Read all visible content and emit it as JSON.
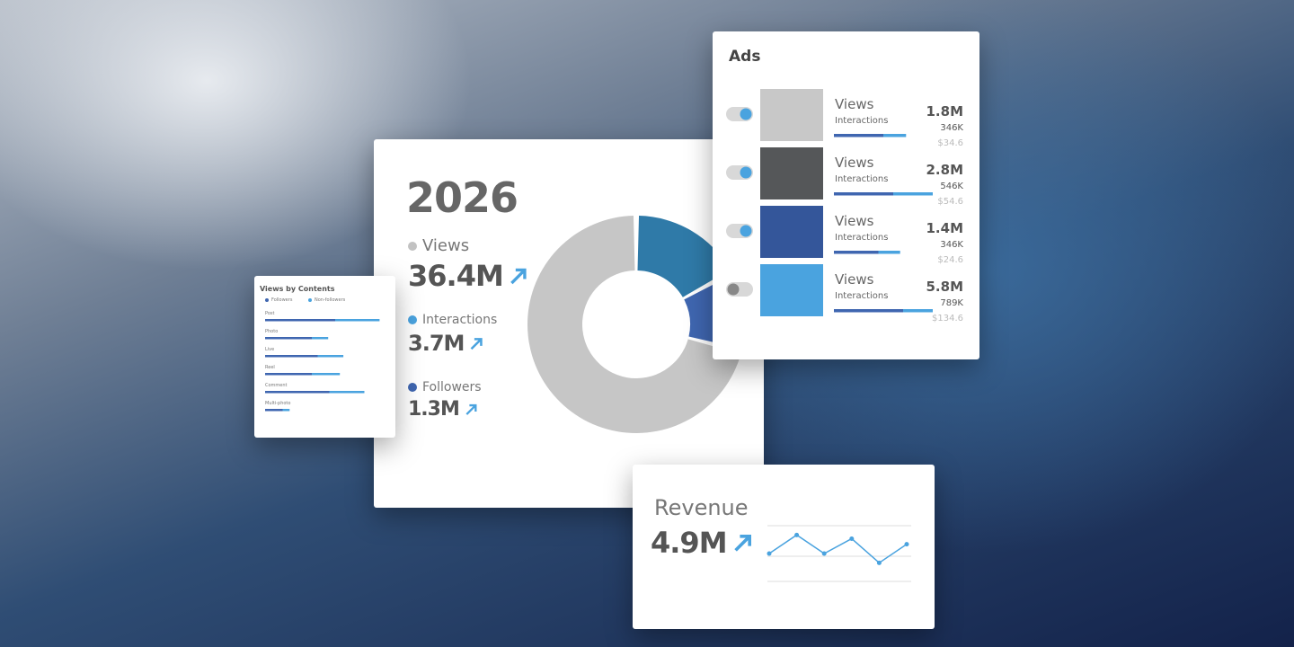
{
  "header": {
    "year": "2026"
  },
  "summary": {
    "metrics": [
      {
        "label": "Views",
        "value": "36.4M",
        "color": "#c2c2c2"
      },
      {
        "label": "Interactions",
        "value": "3.7M",
        "color": "#4aa3df"
      },
      {
        "label": "Followers",
        "value": "1.3M",
        "color": "#3f66b0"
      }
    ]
  },
  "donut": {
    "values": [
      17,
      12,
      71
    ],
    "colors": [
      "#2f7aa8",
      "#3f66b0",
      "#c6c6c6"
    ]
  },
  "contents": {
    "title": "Views by Contents",
    "legend": [
      {
        "name": "Followers",
        "color": "#3f66b0"
      },
      {
        "name": "Non-followers",
        "color": "#4aa3df"
      }
    ],
    "rows": [
      {
        "label": "Post",
        "values": [
          60,
          38
        ]
      },
      {
        "label": "Photo",
        "values": [
          40,
          14
        ]
      },
      {
        "label": "Live",
        "values": [
          45,
          22
        ]
      },
      {
        "label": "Reel",
        "values": [
          40,
          24
        ]
      },
      {
        "label": "Comment",
        "values": [
          55,
          30
        ]
      },
      {
        "label": "Multi-photo",
        "values": [
          15,
          6
        ]
      }
    ]
  },
  "ads": {
    "title": "Ads",
    "rows": [
      {
        "on": true,
        "thumb": "#c8c8c8",
        "metric": "Views",
        "sub": "Interactions",
        "views": "1.8M",
        "interactions": "346K",
        "cost": "$34.6",
        "bar": [
          50,
          23
        ]
      },
      {
        "on": true,
        "thumb": "#555759",
        "metric": "Views",
        "sub": "Interactions",
        "views": "2.8M",
        "interactions": "546K",
        "cost": "$54.6",
        "bar": [
          60,
          40
        ]
      },
      {
        "on": true,
        "thumb": "#34569a",
        "metric": "Views",
        "sub": "Interactions",
        "views": "1.4M",
        "interactions": "346K",
        "cost": "$24.6",
        "bar": [
          45,
          22
        ]
      },
      {
        "on": false,
        "thumb": "#4aa3df",
        "metric": "Views",
        "sub": "Interactions",
        "views": "5.8M",
        "interactions": "789K",
        "cost": "$134.6",
        "bar": [
          70,
          30
        ]
      }
    ]
  },
  "revenue": {
    "title": "Revenue",
    "value": "4.9M",
    "trend": [
      3,
      5,
      3,
      4.6,
      2,
      4
    ]
  }
}
